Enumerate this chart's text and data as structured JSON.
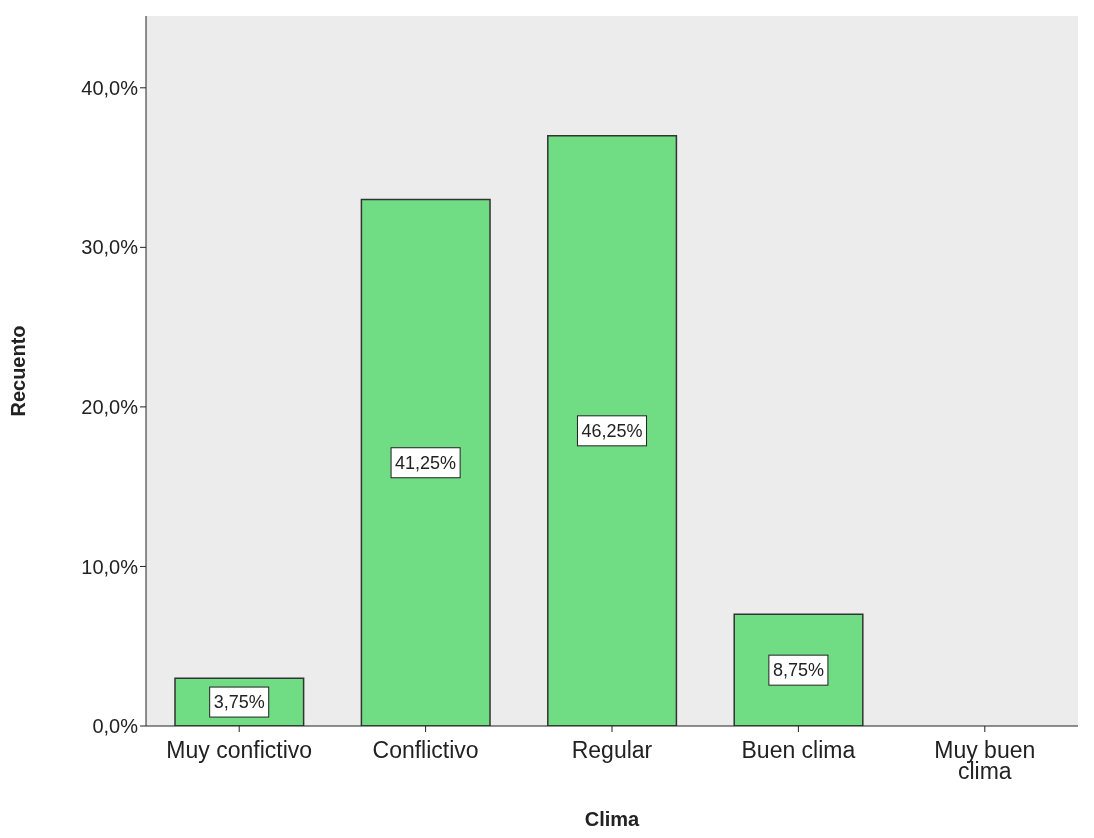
{
  "chart_data": {
    "type": "bar",
    "xlabel": "Clima",
    "ylabel": "Recuento",
    "categories": [
      "Muy confictivo",
      "Conflictivo",
      "Regular",
      "Buen clima",
      "Muy buen clima"
    ],
    "values": [
      3,
      33,
      37,
      7,
      0
    ],
    "color": "#70dc84",
    "ylim": [
      0,
      44.5
    ],
    "yticks": [
      {
        "value": 0,
        "label": "0,0%"
      },
      {
        "value": 10,
        "label": "10,0%"
      },
      {
        "value": 20,
        "label": "20,0%"
      },
      {
        "value": 30,
        "label": "30,0%"
      },
      {
        "value": 40,
        "label": "40,0%"
      }
    ],
    "annotations": [
      "3,75%",
      "41,25%",
      "46,25%",
      "8,75%"
    ],
    "grid": false
  }
}
